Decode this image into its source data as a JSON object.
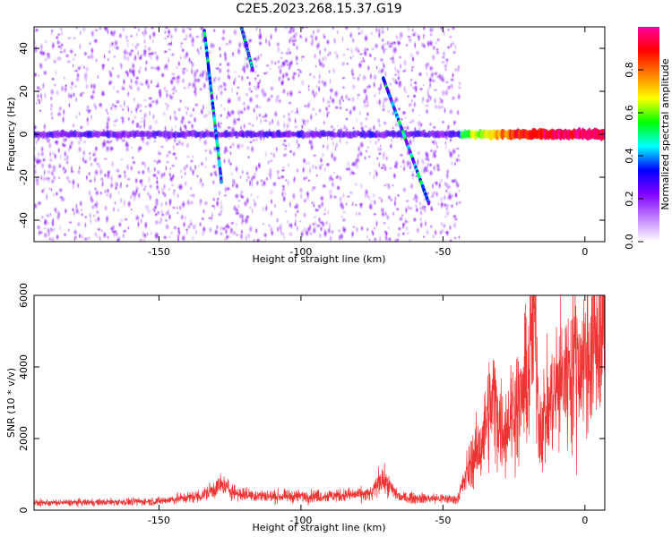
{
  "title": "C2E5.2023.268.15.37.G19",
  "chart_data": [
    {
      "type": "heatmap",
      "title": "C2E5.2023.268.15.37.G19",
      "xlabel": "Height of straight line (km)",
      "ylabel": "Frequency (Hz)",
      "xlim": [
        -194,
        7
      ],
      "ylim": [
        -50,
        50
      ],
      "xticks": [
        -150,
        -100,
        -50,
        0
      ],
      "yticks": [
        -40,
        -20,
        0,
        20,
        40
      ],
      "colorbar": {
        "label": "Normalized spectral amplitude",
        "range": [
          0,
          1
        ],
        "ticks": [
          0,
          0.2,
          0.4,
          0.6,
          0.8
        ],
        "colors": [
          "#ffffff",
          "#c080ff",
          "#8000ff",
          "#0000ff",
          "#00ffff",
          "#00ff00",
          "#ffff00",
          "#ff8000",
          "#ff0000",
          "#ff00a0"
        ]
      },
      "features": [
        {
          "name": "noise",
          "x_range": [
            -194,
            -44
          ],
          "f_range": [
            -50,
            50
          ],
          "amplitude": 0.1
        },
        {
          "name": "carrier",
          "x_range": [
            -194,
            7
          ],
          "frequency": 0
        },
        {
          "name": "streak",
          "points": [
            [
              -134,
              48
            ],
            [
              -128,
              -22
            ]
          ]
        },
        {
          "name": "streak",
          "points": [
            [
              -121,
              50
            ],
            [
              -117,
              30
            ]
          ]
        },
        {
          "name": "streak",
          "points": [
            [
              -71,
              26
            ],
            [
              -55,
              -32
            ]
          ]
        }
      ],
      "carrier_amplitude": [
        [
          -194,
          0.25
        ],
        [
          -44,
          0.25
        ],
        [
          -43,
          0.55
        ],
        [
          -30,
          0.75
        ],
        [
          -22,
          0.9
        ],
        [
          -10,
          0.95
        ],
        [
          7,
          0.95
        ]
      ]
    },
    {
      "type": "line",
      "xlabel": "Height of straight line (km)",
      "ylabel": "SNR (10 * v/v)",
      "xlim": [
        -194,
        7
      ],
      "ylim": [
        0,
        6000
      ],
      "xticks": [
        -150,
        -100,
        -50,
        0
      ],
      "yticks": [
        0,
        2000,
        4000,
        6000
      ],
      "color": "#ee3333",
      "x": [
        -194,
        -170,
        -150,
        -135,
        -128,
        -122,
        -110,
        -90,
        -75,
        -72,
        -65,
        -50,
        -45,
        -43,
        -40,
        -37,
        -34,
        -32,
        -29,
        -26,
        -23,
        -20,
        -18,
        -16,
        -13,
        -10,
        -7,
        -4,
        -1,
        2,
        5,
        7
      ],
      "y": [
        200,
        220,
        250,
        400,
        700,
        450,
        380,
        400,
        450,
        900,
        350,
        320,
        300,
        700,
        1400,
        1700,
        2700,
        3100,
        2200,
        2700,
        3000,
        3700,
        5800,
        2400,
        2800,
        3400,
        3700,
        4200,
        4100,
        4500,
        4800,
        5200
      ]
    }
  ]
}
